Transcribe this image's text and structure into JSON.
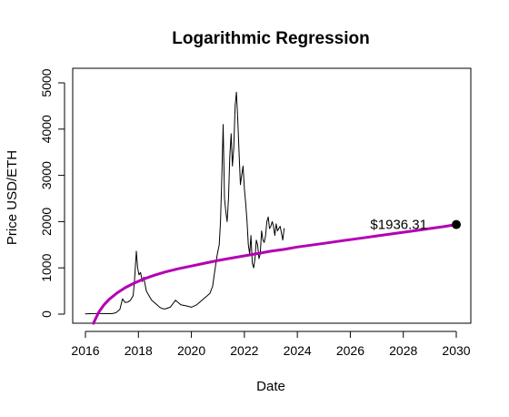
{
  "chart_data": {
    "type": "line",
    "title": "Logarithmic Regression",
    "xlabel": "Date",
    "ylabel": "Price USD/ETH",
    "xlim": [
      2016,
      2030
    ],
    "ylim": [
      0,
      5000
    ],
    "x_ticks": [
      2016,
      2018,
      2020,
      2022,
      2024,
      2026,
      2028,
      2030
    ],
    "x_tick_labels": [
      "2016",
      "2018",
      "2020",
      "2022",
      "2024",
      "2026",
      "2028",
      "2030"
    ],
    "y_ticks": [
      0,
      1000,
      2000,
      3000,
      4000,
      5000
    ],
    "y_tick_labels": [
      "0",
      "1000",
      "2000",
      "3000",
      "4000",
      "5000"
    ],
    "grid": false,
    "legend": "none",
    "series": [
      {
        "role": "price",
        "color": "#000000",
        "x": [
          2016.0,
          2016.2,
          2016.4,
          2016.6,
          2016.8,
          2017.0,
          2017.15,
          2017.3,
          2017.4,
          2017.5,
          2017.6,
          2017.7,
          2017.8,
          2017.85,
          2017.92,
          2017.97,
          2018.02,
          2018.08,
          2018.15,
          2018.2,
          2018.3,
          2018.4,
          2018.5,
          2018.6,
          2018.7,
          2018.8,
          2018.9,
          2019.0,
          2019.2,
          2019.4,
          2019.5,
          2019.6,
          2019.8,
          2020.0,
          2020.2,
          2020.3,
          2020.5,
          2020.6,
          2020.7,
          2020.8,
          2020.9,
          2020.98,
          2021.05,
          2021.1,
          2021.15,
          2021.2,
          2021.25,
          2021.3,
          2021.35,
          2021.4,
          2021.45,
          2021.5,
          2021.55,
          2021.6,
          2021.65,
          2021.7,
          2021.75,
          2021.8,
          2021.85,
          2021.9,
          2021.95,
          2022.0,
          2022.05,
          2022.1,
          2022.15,
          2022.2,
          2022.25,
          2022.3,
          2022.35,
          2022.4,
          2022.45,
          2022.5,
          2022.55,
          2022.6,
          2022.65,
          2022.7,
          2022.75,
          2022.8,
          2022.85,
          2022.9,
          2022.95,
          2023.0,
          2023.05,
          2023.1,
          2023.15,
          2023.2,
          2023.25,
          2023.3,
          2023.35,
          2023.4,
          2023.45,
          2023.5
        ],
        "y": [
          5,
          10,
          12,
          11,
          10,
          10,
          30,
          100,
          330,
          250,
          260,
          300,
          400,
          700,
          1360,
          1000,
          850,
          900,
          700,
          800,
          500,
          400,
          300,
          250,
          200,
          150,
          120,
          110,
          150,
          300,
          250,
          200,
          180,
          150,
          200,
          250,
          350,
          400,
          450,
          600,
          1000,
          1300,
          1500,
          2000,
          3000,
          4100,
          2500,
          2200,
          2000,
          2500,
          3400,
          3900,
          3200,
          3600,
          4500,
          4800,
          4200,
          3500,
          2800,
          3000,
          3200,
          2700,
          2400,
          2000,
          1500,
          1300,
          1700,
          1100,
          1000,
          1200,
          1600,
          1500,
          1200,
          1300,
          1800,
          1600,
          1550,
          1700,
          2000,
          2100,
          1850,
          1900,
          2000,
          1900,
          1700,
          1950,
          1800,
          1850,
          1900,
          1750,
          1600,
          1850
        ]
      },
      {
        "role": "logarithmic-regression",
        "color": "#b300b3",
        "x": [
          2016.3,
          2016.5,
          2016.7,
          2016.9,
          2017.2,
          2017.5,
          2017.8,
          2018.2,
          2018.6,
          2019.0,
          2019.5,
          2020.0,
          2020.5,
          2021.0,
          2021.5,
          2022.0,
          2022.5,
          2023.0,
          2023.5,
          2024.0,
          2024.5,
          2025.0,
          2025.5,
          2026.0,
          2026.5,
          2027.0,
          2027.5,
          2028.0,
          2028.5,
          2029.0,
          2029.5,
          2030.0
        ],
        "y": [
          -200,
          40,
          200,
          320,
          460,
          570,
          660,
          760,
          840,
          910,
          980,
          1040,
          1100,
          1160,
          1210,
          1260,
          1310,
          1360,
          1400,
          1450,
          1490,
          1530,
          1570,
          1610,
          1650,
          1690,
          1730,
          1770,
          1810,
          1850,
          1890,
          1936.31
        ]
      }
    ],
    "marker": {
      "x": 2030,
      "y": 1936.31,
      "color": "#000000"
    },
    "annotation": {
      "text": "$1936.31",
      "x": 2030,
      "y": 1936.31
    }
  }
}
